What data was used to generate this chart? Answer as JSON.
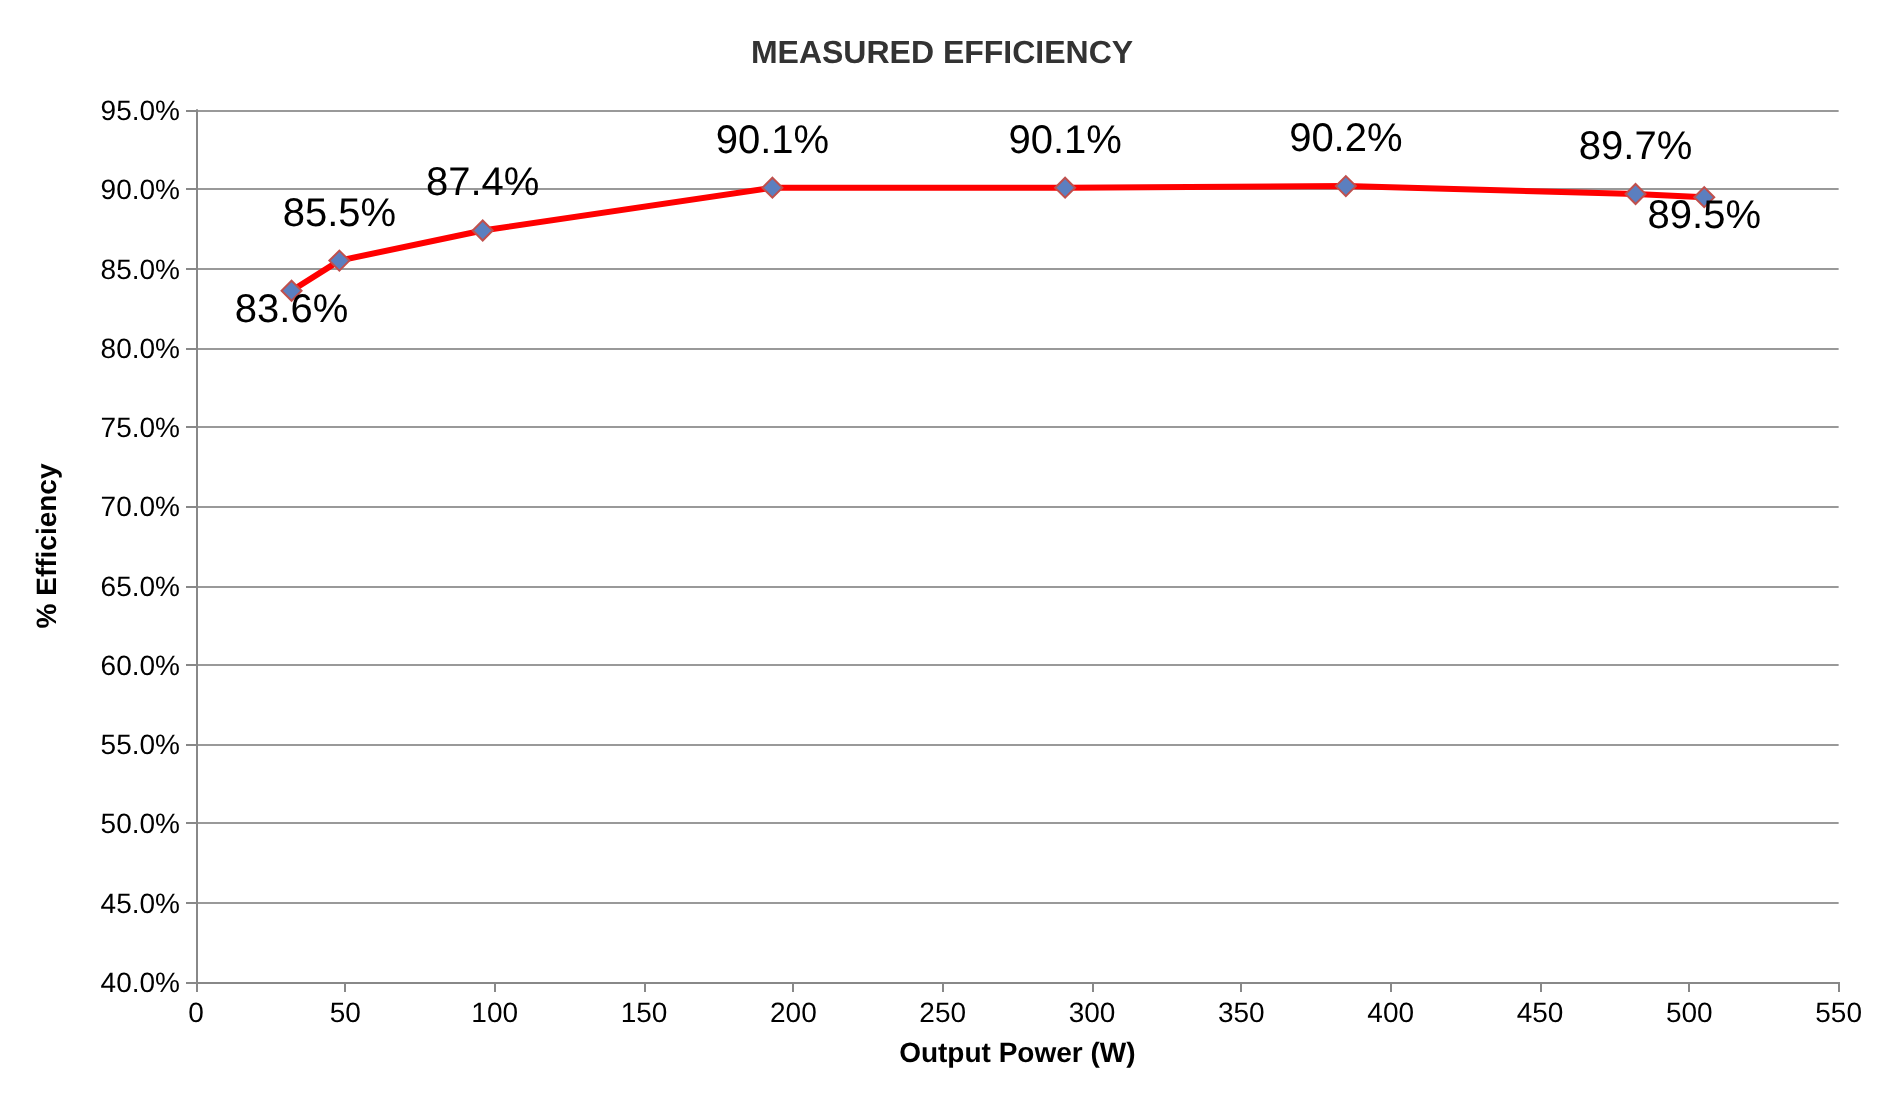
{
  "chart_data": {
    "type": "line",
    "title": "MEASURED EFFICIENCY",
    "xlabel": "Output Power (W)",
    "ylabel": "% Efficiency",
    "x": [
      32,
      48,
      96,
      193,
      291,
      385,
      482,
      505
    ],
    "series": [
      {
        "color": "#ff0000",
        "values": [
          83.6,
          85.5,
          87.4,
          90.1,
          90.1,
          90.2,
          89.7,
          89.5
        ],
        "value_labels": [
          "83.6%",
          "85.5%",
          "87.4%",
          "90.1%",
          "90.1%",
          "90.2%",
          "89.7%",
          "89.5%"
        ]
      }
    ],
    "xlim": [
      0,
      550
    ],
    "xticks": [
      0,
      50,
      100,
      150,
      200,
      250,
      300,
      350,
      400,
      450,
      500,
      550
    ],
    "ylim": [
      40,
      95
    ],
    "yticks": [
      {
        "value": 40,
        "label": "40.0%"
      },
      {
        "value": 45,
        "label": "45.0%"
      },
      {
        "value": 50,
        "label": "50.0%"
      },
      {
        "value": 55,
        "label": "55.0%"
      },
      {
        "value": 60,
        "label": "60.0%"
      },
      {
        "value": 65,
        "label": "65.0%"
      },
      {
        "value": 70,
        "label": "70.0%"
      },
      {
        "value": 75,
        "label": "75.0%"
      },
      {
        "value": 80,
        "label": "80.0%"
      },
      {
        "value": 85,
        "label": "85.0%"
      },
      {
        "value": 90,
        "label": "90.0%"
      },
      {
        "value": 95,
        "label": "95.0%"
      }
    ],
    "grid": "y",
    "marker": "diamond",
    "line_style": "solid"
  }
}
